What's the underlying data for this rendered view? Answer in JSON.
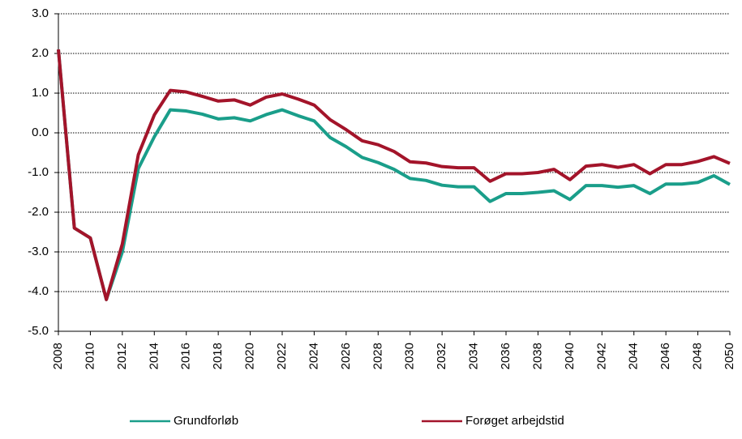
{
  "chart_data": {
    "type": "line",
    "x": [
      2008,
      2009,
      2010,
      2011,
      2012,
      2013,
      2014,
      2015,
      2016,
      2017,
      2018,
      2019,
      2020,
      2021,
      2022,
      2023,
      2024,
      2025,
      2026,
      2027,
      2028,
      2029,
      2030,
      2031,
      2032,
      2033,
      2034,
      2035,
      2036,
      2037,
      2038,
      2039,
      2040,
      2041,
      2042,
      2043,
      2044,
      2045,
      2046,
      2047,
      2048,
      2049,
      2050
    ],
    "series": [
      {
        "name": "Grundforløb",
        "color": "#1a9e8a",
        "values": [
          2.1,
          -2.4,
          -2.65,
          -4.2,
          -3.0,
          -0.9,
          -0.1,
          0.58,
          0.55,
          0.47,
          0.35,
          0.38,
          0.3,
          0.46,
          0.58,
          0.43,
          0.3,
          -0.12,
          -0.35,
          -0.62,
          -0.75,
          -0.92,
          -1.15,
          -1.2,
          -1.32,
          -1.36,
          -1.36,
          -1.73,
          -1.53,
          -1.53,
          -1.5,
          -1.46,
          -1.68,
          -1.33,
          -1.33,
          -1.37,
          -1.33,
          -1.53,
          -1.29,
          -1.29,
          -1.25,
          -1.08,
          -1.3
        ]
      },
      {
        "name": "Forøget arbejdstid",
        "color": "#a3142a",
        "values": [
          2.1,
          -2.4,
          -2.65,
          -4.2,
          -2.8,
          -0.55,
          0.45,
          1.07,
          1.03,
          0.92,
          0.8,
          0.83,
          0.7,
          0.9,
          0.98,
          0.85,
          0.7,
          0.33,
          0.08,
          -0.2,
          -0.3,
          -0.47,
          -0.73,
          -0.76,
          -0.85,
          -0.88,
          -0.88,
          -1.22,
          -1.03,
          -1.03,
          -1.0,
          -0.92,
          -1.18,
          -0.84,
          -0.8,
          -0.87,
          -0.8,
          -1.03,
          -0.8,
          -0.8,
          -0.72,
          -0.6,
          -0.77
        ]
      }
    ],
    "xlim": [
      2008,
      2050
    ],
    "xticks": [
      2008,
      2010,
      2012,
      2014,
      2016,
      2018,
      2020,
      2022,
      2024,
      2026,
      2028,
      2030,
      2032,
      2034,
      2036,
      2038,
      2040,
      2042,
      2044,
      2046,
      2048,
      2050
    ],
    "ylim": [
      -5,
      3
    ],
    "yticks": [
      {
        "value": -5,
        "label": "-5.0"
      },
      {
        "value": -4,
        "label": "-4.0"
      },
      {
        "value": -3,
        "label": "-3.0"
      },
      {
        "value": -2,
        "label": "-2.0"
      },
      {
        "value": -1,
        "label": "-1.0"
      },
      {
        "value": 0,
        "label": "0.0"
      },
      {
        "value": 1,
        "label": "1.0"
      },
      {
        "value": 2,
        "label": "2.0"
      },
      {
        "value": 3,
        "label": "3.0"
      }
    ],
    "grid": true,
    "legend": "bottom"
  }
}
